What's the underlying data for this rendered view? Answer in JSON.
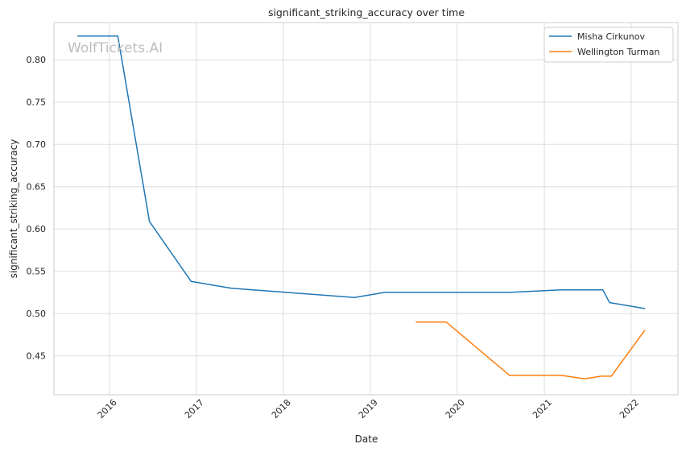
{
  "watermark": "WolfTickets.AI",
  "chart_data": {
    "type": "line",
    "title": "significant_striking_accuracy over time",
    "xlabel": "Date",
    "ylabel": "significant_striking_accuracy",
    "x_ticks": [
      "2016",
      "2017",
      "2018",
      "2019",
      "2020",
      "2021",
      "2022"
    ],
    "y_ticks": [
      "0.45",
      "0.50",
      "0.55",
      "0.60",
      "0.65",
      "0.70",
      "0.75",
      "0.80"
    ],
    "xlim": [
      "2015-05-14",
      "2022-07-16"
    ],
    "ylim": [
      0.404,
      0.844
    ],
    "grid": true,
    "legend_position": "top-right",
    "series": [
      {
        "name": "Misha Cirkunov",
        "color": "#1f77b4",
        "points": [
          {
            "x": "2015-08-22",
            "y": 0.828
          },
          {
            "x": "2016-02-06",
            "y": 0.828
          },
          {
            "x": "2016-06-18",
            "y": 0.609
          },
          {
            "x": "2016-12-10",
            "y": 0.538
          },
          {
            "x": "2017-05-28",
            "y": 0.53
          },
          {
            "x": "2018-10-27",
            "y": 0.519
          },
          {
            "x": "2019-03-02",
            "y": 0.525
          },
          {
            "x": "2020-08-08",
            "y": 0.525
          },
          {
            "x": "2021-03-13",
            "y": 0.528
          },
          {
            "x": "2021-09-04",
            "y": 0.528
          },
          {
            "x": "2021-10-02",
            "y": 0.513
          },
          {
            "x": "2022-02-26",
            "y": 0.506
          }
        ]
      },
      {
        "name": "Wellington Turman",
        "color": "#ff7f0e",
        "points": [
          {
            "x": "2019-07-13",
            "y": 0.49
          },
          {
            "x": "2019-11-16",
            "y": 0.49
          },
          {
            "x": "2020-08-08",
            "y": 0.427
          },
          {
            "x": "2021-03-13",
            "y": 0.427
          },
          {
            "x": "2021-06-19",
            "y": 0.423
          },
          {
            "x": "2021-08-28",
            "y": 0.426
          },
          {
            "x": "2021-10-09",
            "y": 0.426
          },
          {
            "x": "2022-02-26",
            "y": 0.48
          }
        ]
      }
    ]
  }
}
